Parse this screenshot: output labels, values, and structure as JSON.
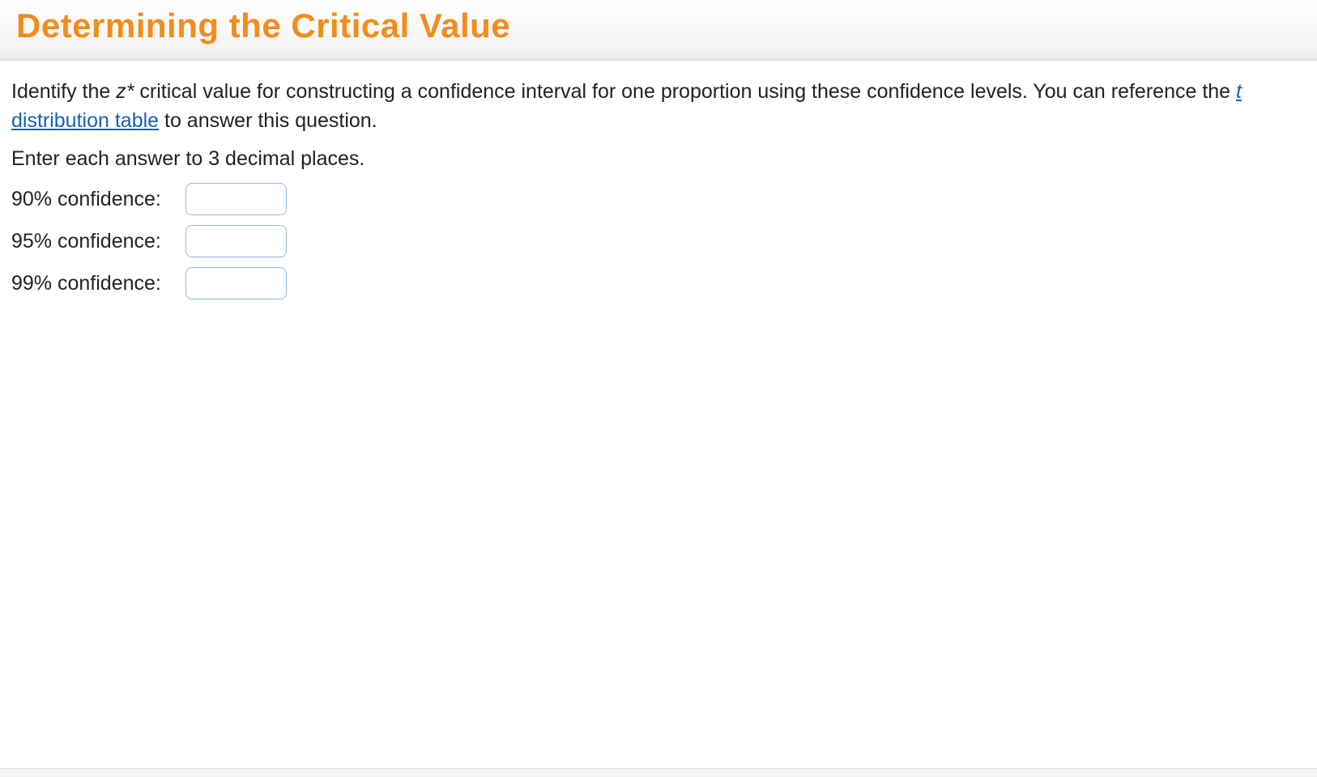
{
  "header": {
    "title": "Determining the Critical Value",
    "title_color": "#f28c1a",
    "header_gradient_top": "#ffffff",
    "header_gradient_bottom": "#e9e9e9",
    "header_border": "#d9d9d9"
  },
  "question": {
    "line1_prefix": "Identify the ",
    "z_star": "z*",
    "line1_mid": " critical value for constructing a confidence interval for one proportion using these confidence levels. You can reference the ",
    "link_t": "t",
    "link_rest": " distribution table",
    "line1_suffix": " to answer this question.",
    "line2": "Enter each answer to 3 decimal places."
  },
  "inputs": [
    {
      "label": "90% confidence:",
      "value": ""
    },
    {
      "label": "95% confidence:",
      "value": ""
    },
    {
      "label": "99% confidence:",
      "value": ""
    }
  ],
  "styles": {
    "body_font_size": 25,
    "text_color": "#222222",
    "link_color": "#1a5fb4",
    "input_border_color": "#9bb7d4",
    "input_border_radius": 8,
    "input_width": 125,
    "input_height": 40,
    "label_width": 215
  }
}
